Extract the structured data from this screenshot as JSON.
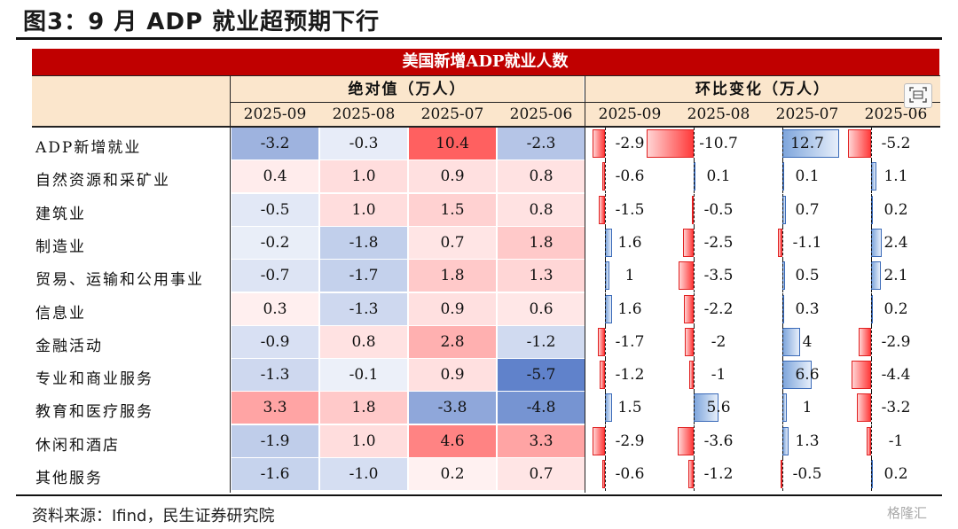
{
  "figure_title": "图3：9 月 ADP 就业超预期下行",
  "banner": "美国新增ADP就业人数",
  "group_abs": "绝对值（万人）",
  "group_chg": "环比变化（万人）",
  "months_abs": [
    "2025-09",
    "2025-08",
    "2025-07",
    "2025-06"
  ],
  "months_chg": [
    "2025-09",
    "2025-08",
    "2025-07",
    "2025-06"
  ],
  "source": "资料来源：Ifind，民生证券研究院",
  "watermark": "格隆汇",
  "icons": {
    "toolbar": "screenshot-frame-icon",
    "watermark": "brand-logo-icon"
  },
  "colors": {
    "banner": "#c00000",
    "header_bg": "#fbe6cc",
    "neg": "#ff3b3b",
    "pos": "#3a6ab8"
  },
  "chart_data": {
    "type": "table",
    "title": "美国新增ADP就业人数",
    "rows": [
      {
        "label": "ADP新增就业",
        "abs": [
          "-3.2",
          "-0.3",
          "10.4",
          "-2.3"
        ],
        "chg": [
          "-2.9",
          "-10.7",
          "12.7",
          "-5.2"
        ]
      },
      {
        "label": "自然资源和采矿业",
        "abs": [
          "0.4",
          "1.0",
          "0.9",
          "0.8"
        ],
        "chg": [
          "-0.6",
          "0.1",
          "0.1",
          "1.1"
        ]
      },
      {
        "label": "建筑业",
        "abs": [
          "-0.5",
          "1.0",
          "1.5",
          "0.8"
        ],
        "chg": [
          "-1.5",
          "-0.5",
          "0.7",
          "0.2"
        ]
      },
      {
        "label": "制造业",
        "abs": [
          "-0.2",
          "-1.8",
          "0.7",
          "1.8"
        ],
        "chg": [
          "1.6",
          "-2.5",
          "-1.1",
          "2.4"
        ]
      },
      {
        "label": "贸易、运输和公用事业",
        "abs": [
          "-0.7",
          "-1.7",
          "1.8",
          "1.3"
        ],
        "chg": [
          "1",
          "-3.5",
          "0.5",
          "2.1"
        ]
      },
      {
        "label": "信息业",
        "abs": [
          "0.3",
          "-1.3",
          "0.9",
          "0.6"
        ],
        "chg": [
          "1.6",
          "-2.2",
          "0.3",
          "0.2"
        ]
      },
      {
        "label": "金融活动",
        "abs": [
          "-0.9",
          "0.8",
          "2.8",
          "-1.2"
        ],
        "chg": [
          "-1.7",
          "-2",
          "4",
          "-2.9"
        ]
      },
      {
        "label": "专业和商业服务",
        "abs": [
          "-1.3",
          "-0.1",
          "0.9",
          "-5.7"
        ],
        "chg": [
          "-1.2",
          "-1",
          "6.6",
          "-4.4"
        ]
      },
      {
        "label": "教育和医疗服务",
        "abs": [
          "3.3",
          "1.8",
          "-3.8",
          "-4.8"
        ],
        "chg": [
          "1.5",
          "5.6",
          "1",
          "-3.2"
        ]
      },
      {
        "label": "休闲和酒店",
        "abs": [
          "-1.9",
          "1.0",
          "4.6",
          "3.3"
        ],
        "chg": [
          "-2.9",
          "-3.6",
          "1.3",
          "-1"
        ]
      },
      {
        "label": "其他服务",
        "abs": [
          "-1.6",
          "-1.0",
          "0.2",
          "0.7"
        ],
        "chg": [
          "-0.6",
          "-1.2",
          "-0.5",
          "0.2"
        ]
      }
    ]
  }
}
